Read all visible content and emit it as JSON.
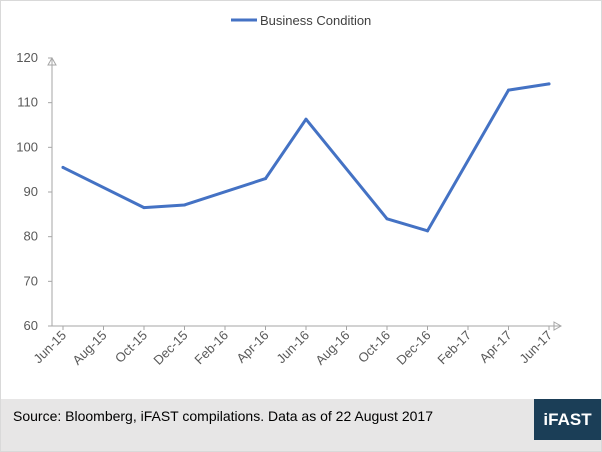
{
  "chart_data": {
    "type": "line",
    "categories": [
      "Jun-15",
      "Aug-15",
      "Oct-15",
      "Dec-15",
      "Feb-16",
      "Apr-16",
      "Jun-16",
      "Aug-16",
      "Oct-16",
      "Dec-16",
      "Feb-17",
      "Apr-17",
      "Jun-17"
    ],
    "series": [
      {
        "name": "Business Condition",
        "color": "#4472c4",
        "points": [
          {
            "x": "Jun-15",
            "y": 95.5
          },
          {
            "x": "Oct-15",
            "y": 86.5
          },
          {
            "x": "Dec-15",
            "y": 87.1
          },
          {
            "x": "Apr-16",
            "y": 93.0
          },
          {
            "x": "Jun-16",
            "y": 106.3
          },
          {
            "x": "Oct-16",
            "y": 84.0
          },
          {
            "x": "Dec-16",
            "y": 81.3
          },
          {
            "x": "Apr-17",
            "y": 112.8
          },
          {
            "x": "Jun-17",
            "y": 114.2
          }
        ]
      }
    ],
    "yticks": [
      60,
      70,
      80,
      90,
      100,
      110,
      120
    ],
    "ylim": [
      60,
      120
    ],
    "grid": false,
    "legend_position": "top-center",
    "axis_color": "#a6a6a6"
  },
  "footer": {
    "source": "Source: Bloomberg, iFAST compilations. Data as of 22 August 2017",
    "logo_text": "iFAST",
    "logo_color": "#1b3e57",
    "background": "#e7e6e6"
  }
}
